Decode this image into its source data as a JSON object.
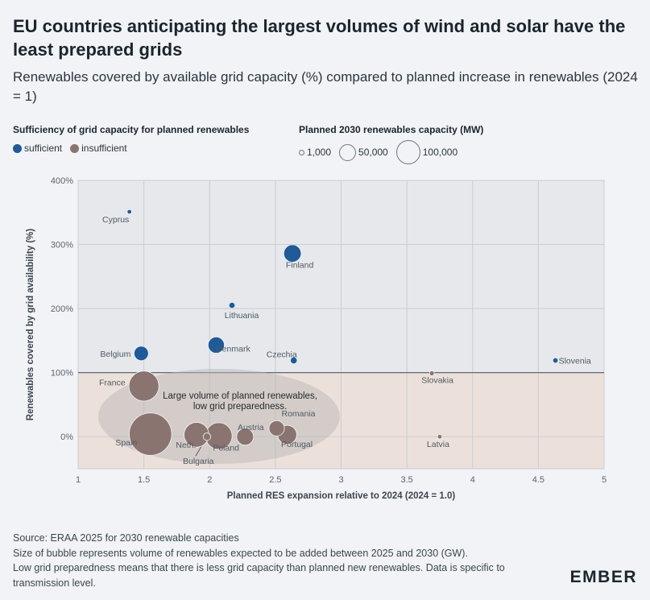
{
  "header": {
    "title": "EU countries anticipating the largest volumes of wind and solar have the least prepared grids",
    "subtitle": "Renewables covered by available grid capacity (%) compared to planned increase in renewables (2024 = 1)"
  },
  "legend": {
    "color_title": "Sufficiency of grid capacity for planned renewables",
    "color_items": [
      {
        "label": "sufficient",
        "color": "#1f5a99"
      },
      {
        "label": "insufficient",
        "color": "#8a7470"
      }
    ],
    "size_title": "Planned 2030 renewables capacity (MW)",
    "size_items": [
      {
        "label": "1,000",
        "mw": 1000
      },
      {
        "label": "50,000",
        "mw": 50000
      },
      {
        "label": "100,000",
        "mw": 100000
      }
    ]
  },
  "chart_data": {
    "type": "scatter",
    "xlabel": "Planned RES expansion relative to 2024 (2024 = 1.0)",
    "ylabel": "Renewables covered by grid availability (%)",
    "xlim": [
      1,
      5
    ],
    "ylim": [
      -50,
      400
    ],
    "xticks": [
      "1",
      "1.5",
      "2",
      "2.5",
      "3",
      "3.5",
      "4",
      "4.5",
      "5"
    ],
    "yticks": [
      "0%",
      "100%",
      "200%",
      "300%",
      "400%"
    ],
    "ytick_values": [
      0,
      100,
      200,
      300,
      400
    ],
    "xtick_values": [
      1,
      1.5,
      2,
      2.5,
      3,
      3.5,
      4,
      4.5,
      5
    ],
    "threshold": 100,
    "annotation": "Large volume of planned renewables, low grid preparedness.",
    "colors": {
      "sufficient": "#1f5a99",
      "insufficient": "#8a7470",
      "insufficient_zone": "#ece1da"
    },
    "points": [
      {
        "country": "Cyprus",
        "x": 1.39,
        "y": 351,
        "mw": 1500,
        "status": "sufficient"
      },
      {
        "country": "Finland",
        "x": 2.63,
        "y": 286,
        "mw": 32000,
        "status": "sufficient"
      },
      {
        "country": "Lithuania",
        "x": 2.17,
        "y": 205,
        "mw": 4000,
        "status": "sufficient"
      },
      {
        "country": "Belgium",
        "x": 1.48,
        "y": 130,
        "mw": 22000,
        "status": "sufficient"
      },
      {
        "country": "Denmark",
        "x": 2.05,
        "y": 143,
        "mw": 28000,
        "status": "sufficient"
      },
      {
        "country": "Czechia",
        "x": 2.64,
        "y": 119,
        "mw": 5000,
        "status": "sufficient"
      },
      {
        "country": "Slovenia",
        "x": 4.63,
        "y": 119,
        "mw": 3000,
        "status": "sufficient"
      },
      {
        "country": "Slovakia",
        "x": 3.69,
        "y": 99,
        "mw": 2500,
        "status": "insufficient"
      },
      {
        "country": "France",
        "x": 1.5,
        "y": 79,
        "mw": 95000,
        "status": "insufficient"
      },
      {
        "country": "Spain",
        "x": 1.55,
        "y": 4,
        "mw": 190000,
        "status": "insufficient"
      },
      {
        "country": "Neth.",
        "x": 1.9,
        "y": 3,
        "mw": 65000,
        "status": "insufficient"
      },
      {
        "country": "Bulgaria",
        "x": 1.98,
        "y": 0,
        "mw": 6000,
        "status": "insufficient"
      },
      {
        "country": "Poland",
        "x": 2.07,
        "y": 1,
        "mw": 75000,
        "status": "insufficient"
      },
      {
        "country": "Austria",
        "x": 2.27,
        "y": 0,
        "mw": 30000,
        "status": "insufficient"
      },
      {
        "country": "Romania",
        "x": 2.51,
        "y": 13,
        "mw": 25000,
        "status": "insufficient"
      },
      {
        "country": "Portugal",
        "x": 2.59,
        "y": 3,
        "mw": 38000,
        "status": "insufficient"
      },
      {
        "country": "Latvia",
        "x": 3.75,
        "y": 0,
        "mw": 1500,
        "status": "insufficient"
      }
    ]
  },
  "footer": {
    "line1": "Source: ERAA 2025 for 2030 renewable capacities",
    "line2": "Size of bubble represents volume of renewables expected to be added between 2025 and 2030 (GW).",
    "line3": "Low grid preparedness means that there is less grid capacity than planned new renewables. Data is specific to transmission level."
  },
  "brand": {
    "logo_text": "EMBER",
    "color": "#1b252d"
  }
}
